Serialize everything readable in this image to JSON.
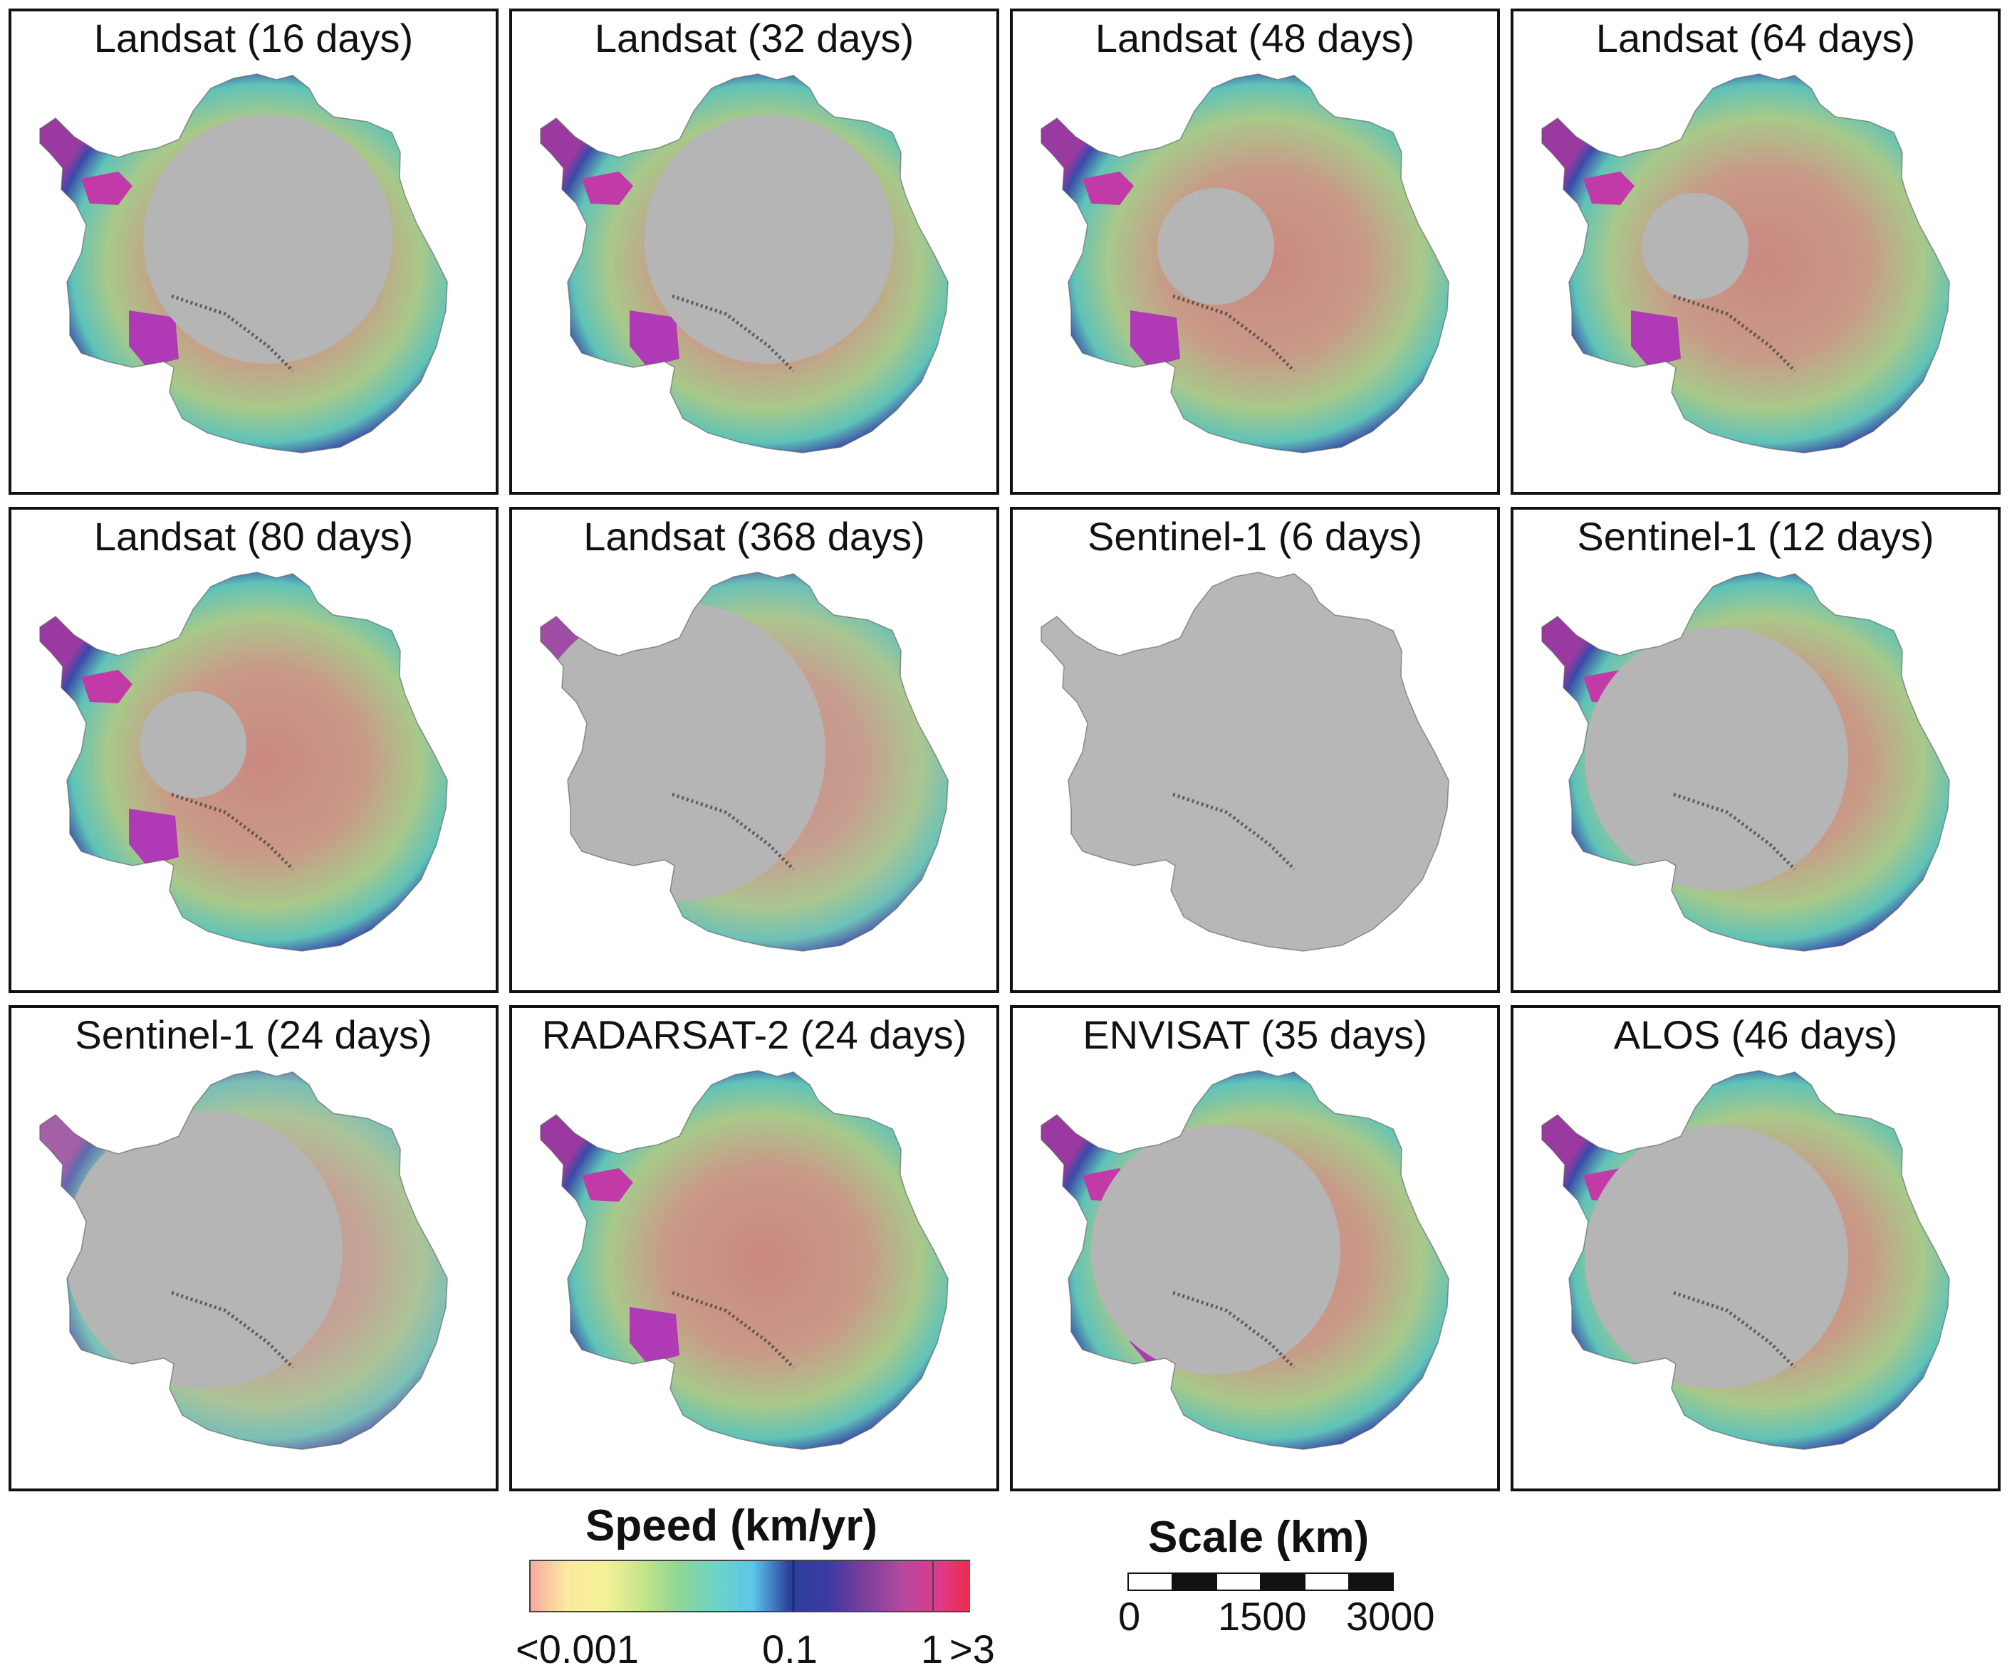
{
  "figure": {
    "panels": [
      {
        "title": "Landsat (16 days)",
        "coverage": "coast-partial"
      },
      {
        "title": "Landsat (32 days)",
        "coverage": "coast-partial"
      },
      {
        "title": "Landsat (48 days)",
        "coverage": "hole-large"
      },
      {
        "title": "Landsat (64 days)",
        "coverage": "hole-medium"
      },
      {
        "title": "Landsat (80 days)",
        "coverage": "hole-medium"
      },
      {
        "title": "Landsat (368 days)",
        "coverage": "east-only"
      },
      {
        "title": "Sentinel-1 (6 days)",
        "coverage": "sparse"
      },
      {
        "title": "Sentinel-1 (12 days)",
        "coverage": "hole-huge"
      },
      {
        "title": "Sentinel-1 (24 days)",
        "coverage": "patchy"
      },
      {
        "title": "RADARSAT-2 (24 days)",
        "coverage": "near-full"
      },
      {
        "title": "ENVISAT (35 days)",
        "coverage": "hole-huge-faded"
      },
      {
        "title": "ALOS (46 days)",
        "coverage": "hole-huge"
      }
    ],
    "colorbar": {
      "title": "Speed (km/yr)",
      "tick_labels": [
        "<0.001",
        "0.1",
        "1",
        ">3"
      ],
      "colors": [
        "#f7a9a0",
        "#fbe9a0",
        "#f5f19a",
        "#c8e58a",
        "#8fd694",
        "#6fd3c8",
        "#5cc6e8",
        "#2d3f9c",
        "#3a3aa0",
        "#7b3f9c",
        "#b04aa0",
        "#e03a8c",
        "#f0283a"
      ]
    },
    "scalebar": {
      "title": "Scale (km)",
      "tick_labels": [
        "0",
        "1500",
        "3000"
      ]
    }
  }
}
